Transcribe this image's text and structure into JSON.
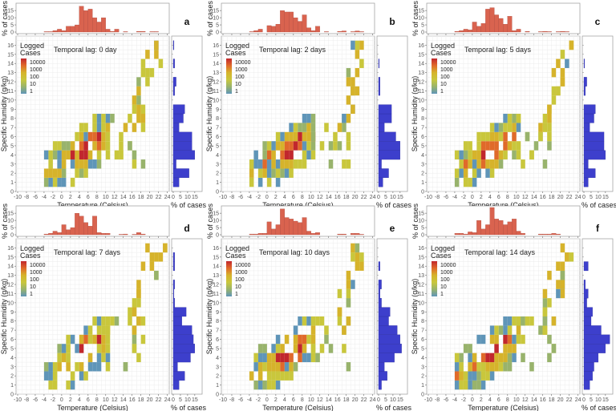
{
  "chart_data": [
    {
      "panel": "a",
      "type": "heatmap",
      "lag_label": "Temporal lag: 0 day",
      "xlabel": "Temperature (Celsius)",
      "ylabel": "Specific Humidity (g/kg)",
      "xlim": [
        -10,
        24
      ],
      "ylim": [
        0,
        17
      ],
      "top_hist": {
        "ylabel": "% of cases",
        "yticks": [
          0,
          5,
          10,
          15
        ],
        "bin_start": -8,
        "bin_width": 1,
        "values": [
          0,
          0,
          0,
          0,
          0.3,
          0.3,
          1,
          2,
          1,
          4,
          4,
          5,
          18,
          15,
          16,
          10,
          7,
          10,
          2,
          0.5,
          2,
          0,
          0.3,
          0,
          0,
          0.5,
          0.5,
          0,
          0.3,
          0.3,
          0
        ]
      },
      "side_hist": {
        "xlabel": "% of cases",
        "xticks": [
          0,
          5,
          10,
          15
        ],
        "values": [
          0,
          4,
          11,
          2,
          15,
          13,
          13,
          4,
          7,
          8,
          0,
          1,
          2,
          0,
          1,
          0,
          0.5,
          0
        ]
      },
      "legend": {
        "title": "Logged Cases",
        "labels": [
          "10000",
          "1000",
          "100",
          "10",
          "1"
        ]
      }
    },
    {
      "panel": "b",
      "type": "heatmap",
      "lag_label": "Temporal lag: 2 days",
      "xlabel": "Temperature (Celsius)",
      "ylabel": "Specific Humidity (g/kg)",
      "xlim": [
        -10,
        24
      ],
      "ylim": [
        0,
        17
      ],
      "top_hist": {
        "ylabel": "% of cases",
        "yticks": [
          0,
          5,
          10,
          15
        ],
        "bin_start": -8,
        "bin_width": 1,
        "values": [
          0,
          0,
          0,
          0,
          0.3,
          1,
          2,
          0,
          4.5,
          4,
          5.5,
          15,
          14,
          14,
          10,
          7.5,
          12,
          3,
          1,
          4,
          0,
          0.3,
          0,
          0,
          0.5,
          0.8,
          0,
          0.3,
          0.8,
          0.3,
          0
        ]
      },
      "side_hist": {
        "xlabel": "% of cases",
        "xticks": [
          0,
          5,
          10,
          15
        ],
        "values": [
          0,
          3,
          7,
          2,
          15,
          15,
          12,
          4,
          9,
          9,
          0,
          1,
          1,
          0,
          0.5,
          0,
          0,
          0
        ]
      },
      "legend": {
        "title": "Logged Cases",
        "labels": [
          "10000",
          "1000",
          "100",
          "10",
          "1"
        ]
      }
    },
    {
      "panel": "c",
      "type": "heatmap",
      "lag_label": "Temporal lag: 5 days",
      "xlabel": "Temperature (Celsius)",
      "ylabel": "Specific Humidity (g/kg)",
      "xlim": [
        -10,
        24
      ],
      "ylim": [
        0,
        17
      ],
      "top_hist": {
        "ylabel": "% of cases",
        "yticks": [
          0,
          5,
          10,
          15
        ],
        "bin_start": -8,
        "bin_width": 1,
        "values": [
          0,
          0,
          0,
          0,
          0.5,
          1,
          2,
          1.5,
          7,
          4,
          6,
          16,
          17,
          12,
          9.5,
          5.5,
          11,
          1,
          2,
          0,
          0.5,
          0,
          0,
          0.3,
          0.5,
          0.3,
          0,
          0.3,
          0.5,
          0.3,
          0
        ]
      },
      "side_hist": {
        "xlabel": "% of cases",
        "xticks": [
          0,
          5,
          10,
          15
        ],
        "values": [
          0,
          3,
          8,
          3,
          15,
          14,
          14,
          4,
          7,
          8,
          0,
          1,
          2,
          0,
          0.5,
          0,
          0,
          0
        ]
      },
      "legend": {
        "title": "Logged Cases",
        "labels": [
          "10000",
          "1000",
          "100",
          "10",
          "1"
        ]
      }
    },
    {
      "panel": "d",
      "type": "heatmap",
      "lag_label": "Temporal lag: 7 days",
      "xlabel": "Temperature (Celsius)",
      "ylabel": "Specific Humidity (g/kg)",
      "xlim": [
        -10,
        24
      ],
      "ylim": [
        0,
        17
      ],
      "top_hist": {
        "ylabel": "% of cases",
        "yticks": [
          0,
          5,
          10,
          15
        ],
        "bin_start": -8,
        "bin_width": 1,
        "values": [
          0,
          0,
          0,
          0,
          0.5,
          1,
          2.5,
          1.5,
          7,
          3.5,
          5,
          15,
          13,
          8.5,
          6,
          13,
          1.5,
          1,
          1,
          0,
          0,
          0.3,
          0.5,
          0,
          0.3,
          1.5,
          0.5,
          0,
          0,
          0,
          0
        ]
      },
      "side_hist": {
        "xlabel": "% of cases",
        "xticks": [
          0,
          5,
          10,
          15
        ],
        "values": [
          0,
          4,
          8,
          3,
          12,
          15,
          14,
          13,
          6,
          9,
          1,
          0.5,
          1,
          0,
          1,
          1,
          0,
          0
        ]
      },
      "legend": {
        "title": "Logged Cases",
        "labels": [
          "10000",
          "1000",
          "100",
          "10",
          "1"
        ]
      }
    },
    {
      "panel": "e",
      "type": "heatmap",
      "lag_label": "Temporal lag: 10 days",
      "xlabel": "Temperature (Celsius)",
      "ylabel": "Specific Humidity (g/kg)",
      "xlim": [
        -10,
        24
      ],
      "ylim": [
        0,
        17
      ],
      "top_hist": {
        "ylabel": "% of cases",
        "yticks": [
          0,
          5,
          10,
          15
        ],
        "bin_start": -8,
        "bin_width": 1,
        "values": [
          0,
          0,
          0,
          0,
          0.5,
          0.5,
          1,
          1,
          9,
          4,
          7,
          18,
          12,
          11,
          9.5,
          8.5,
          12,
          2.5,
          1,
          1.5,
          0,
          0,
          0,
          0,
          0.5,
          0.5,
          0,
          1,
          1,
          0.3,
          0
        ]
      },
      "side_hist": {
        "xlabel": "% of cases",
        "xticks": [
          0,
          5,
          10,
          15
        ],
        "values": [
          0,
          2,
          6,
          4,
          11,
          16,
          15,
          13,
          7,
          8,
          2,
          1,
          2,
          0,
          1,
          0,
          0,
          0
        ]
      },
      "legend": {
        "title": "Logged Cases",
        "labels": [
          "10000",
          "1000",
          "100",
          "10",
          "1"
        ]
      }
    },
    {
      "panel": "f",
      "type": "heatmap",
      "lag_label": "Temporal lag: 14 days",
      "xlabel": "Temperature (Celsius)",
      "ylabel": "Specific Humidity (g/kg)",
      "xlim": [
        -10,
        24
      ],
      "ylim": [
        0,
        17
      ],
      "top_hist": {
        "ylabel": "% of cases",
        "yticks": [
          0,
          5,
          10,
          15
        ],
        "bin_start": -8,
        "bin_width": 1,
        "values": [
          0,
          0,
          0,
          0,
          1,
          1,
          0.5,
          2,
          1.5,
          10,
          4,
          7,
          19,
          11,
          10,
          7,
          9,
          11,
          2.5,
          1,
          0,
          0,
          0,
          0.5,
          0.5,
          0.5,
          1,
          0.5,
          0,
          0,
          0
        ]
      },
      "side_hist": {
        "xlabel": "% of cases",
        "xticks": [
          0,
          5,
          10,
          15
        ],
        "values": [
          0,
          4,
          6,
          7,
          10,
          15,
          18,
          12,
          5,
          6,
          2,
          3,
          1,
          0,
          3,
          0,
          0,
          0
        ]
      },
      "legend": {
        "title": "Logged Cases",
        "labels": [
          "10000",
          "1000",
          "100",
          "10",
          "1"
        ]
      }
    }
  ],
  "axes": {
    "xticks": [
      -10,
      -8,
      -6,
      -4,
      -2,
      0,
      2,
      4,
      6,
      8,
      10,
      12,
      14,
      16,
      18,
      20,
      22,
      24
    ],
    "yticks": [
      0,
      1,
      2,
      3,
      4,
      5,
      6,
      7,
      8,
      9,
      10,
      11,
      12,
      13,
      14,
      15,
      16
    ]
  },
  "colors": {
    "top_hist_fill": "#d9634f",
    "side_hist_fill": "#3d3fcc",
    "scale": [
      "#c1272d",
      "#e06a2a",
      "#d6b32b",
      "#c9c73c",
      "#98b36c",
      "#5f95b8"
    ]
  }
}
